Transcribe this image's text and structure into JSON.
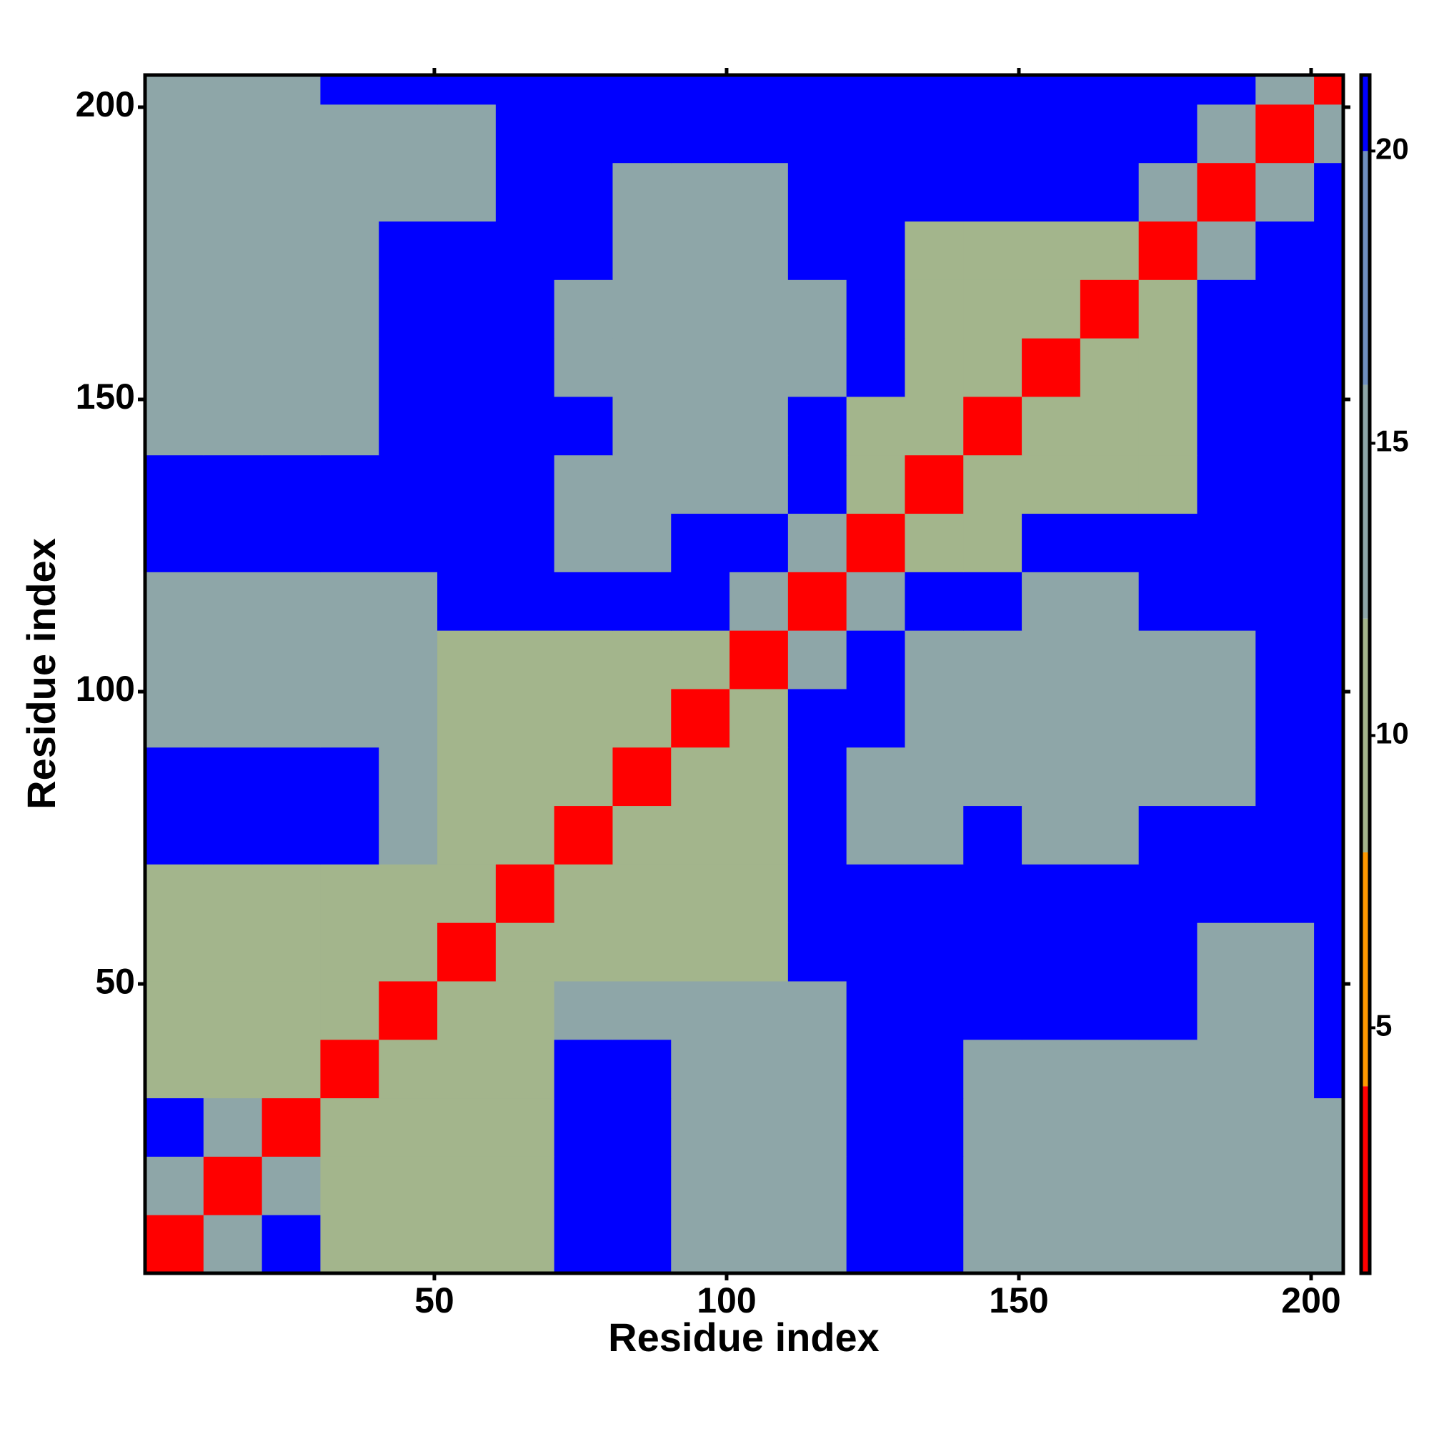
{
  "chart_data": {
    "type": "heatmap",
    "xlabel": "Residue index",
    "ylabel": "Residue index",
    "xlim": [
      0.5,
      205.5
    ],
    "ylim": [
      0.5,
      205.5
    ],
    "xticks": [
      50,
      100,
      150,
      200
    ],
    "yticks": [
      50,
      100,
      150,
      200
    ],
    "bins": [
      0.5,
      10.5,
      20.5,
      30.5,
      40.5,
      50.5,
      60.5,
      70.5,
      80.5,
      90.5,
      100.5,
      110.5,
      120.5,
      130.5,
      140.5,
      150.5,
      160.5,
      170.5,
      180.5,
      190.5,
      200.5,
      205.5
    ],
    "z": [
      [
        4,
        13,
        21,
        12,
        12,
        12,
        12,
        21,
        21,
        13,
        13,
        13,
        21,
        21,
        13,
        13,
        13,
        13,
        13,
        13,
        13
      ],
      [
        13,
        4,
        13,
        12,
        12,
        12,
        12,
        21,
        21,
        13,
        13,
        13,
        21,
        21,
        13,
        13,
        13,
        13,
        13,
        13,
        13
      ],
      [
        21,
        13,
        4,
        12,
        12,
        12,
        12,
        21,
        21,
        13,
        13,
        13,
        21,
        21,
        13,
        13,
        13,
        13,
        13,
        13,
        13
      ],
      [
        12,
        12,
        12,
        4,
        12,
        12,
        12,
        21,
        21,
        13,
        13,
        13,
        21,
        21,
        13,
        13,
        13,
        13,
        13,
        13,
        21
      ],
      [
        12,
        12,
        12,
        12,
        4,
        12,
        12,
        13,
        13,
        13,
        13,
        13,
        21,
        21,
        21,
        21,
        21,
        21,
        15,
        15,
        21
      ],
      [
        12,
        12,
        12,
        12,
        12,
        4,
        12,
        12,
        12,
        12,
        12,
        21,
        21,
        21,
        21,
        21,
        21,
        21,
        15,
        15,
        21
      ],
      [
        12,
        12,
        12,
        12,
        12,
        12,
        4,
        12,
        12,
        12,
        12,
        21,
        21,
        21,
        21,
        21,
        21,
        21,
        21,
        21,
        21
      ],
      [
        21,
        21,
        21,
        21,
        13,
        12,
        12,
        4,
        12,
        12,
        12,
        21,
        13,
        13,
        21,
        14,
        14,
        21,
        21,
        21,
        21
      ],
      [
        21,
        21,
        21,
        21,
        13,
        12,
        12,
        12,
        4,
        12,
        12,
        21,
        13,
        13,
        13,
        13,
        13,
        13,
        13,
        21,
        21
      ],
      [
        13,
        13,
        13,
        13,
        13,
        12,
        12,
        12,
        12,
        4,
        12,
        21,
        21,
        14,
        13,
        13,
        13,
        13,
        13,
        21,
        21
      ],
      [
        13,
        13,
        13,
        13,
        13,
        12,
        12,
        12,
        12,
        12,
        4,
        13,
        21,
        14,
        13,
        13,
        13,
        13,
        13,
        21,
        21
      ],
      [
        13,
        13,
        13,
        13,
        13,
        21,
        21,
        21,
        21,
        21,
        13,
        4,
        13,
        21,
        21,
        14,
        14,
        21,
        21,
        21,
        21
      ],
      [
        21,
        21,
        21,
        21,
        21,
        21,
        21,
        13,
        13,
        21,
        21,
        13,
        4,
        11,
        11,
        21,
        21,
        21,
        21,
        21,
        21
      ],
      [
        21,
        21,
        21,
        21,
        21,
        21,
        21,
        13,
        13,
        14,
        14,
        21,
        11,
        4,
        11,
        12,
        12,
        12,
        21,
        21,
        21
      ],
      [
        13,
        13,
        13,
        13,
        21,
        21,
        21,
        21,
        13,
        13,
        13,
        21,
        11,
        11,
        4,
        12,
        12,
        12,
        21,
        21,
        21
      ],
      [
        13,
        13,
        13,
        13,
        21,
        21,
        21,
        14,
        13,
        13,
        13,
        14,
        21,
        12,
        12,
        4,
        12,
        12,
        21,
        21,
        21
      ],
      [
        13,
        13,
        13,
        13,
        21,
        21,
        21,
        14,
        13,
        13,
        13,
        14,
        21,
        12,
        12,
        12,
        4,
        12,
        21,
        21,
        21
      ],
      [
        13,
        13,
        13,
        13,
        21,
        21,
        21,
        21,
        13,
        13,
        13,
        21,
        21,
        12,
        12,
        12,
        12,
        4,
        13,
        21,
        21
      ],
      [
        13,
        13,
        13,
        13,
        15,
        15,
        21,
        21,
        13,
        13,
        13,
        21,
        21,
        21,
        21,
        21,
        21,
        13,
        4,
        13,
        21
      ],
      [
        13,
        13,
        13,
        13,
        15,
        15,
        21,
        21,
        21,
        21,
        21,
        21,
        21,
        21,
        21,
        21,
        21,
        21,
        13,
        4,
        13
      ],
      [
        13,
        13,
        13,
        21,
        21,
        21,
        21,
        21,
        21,
        21,
        21,
        21,
        21,
        21,
        21,
        21,
        21,
        21,
        21,
        13,
        4
      ]
    ],
    "clim": [
      0.8,
      21.3
    ],
    "cticks": [
      5,
      10,
      15,
      20
    ],
    "colorscale": [
      {
        "value": 4,
        "color": "#ff0000"
      },
      {
        "value": 8,
        "color": "#ff9900"
      },
      {
        "value": 12,
        "color": "#a3b58c"
      },
      {
        "value": 16,
        "color": "#8ea6a8"
      },
      {
        "value": 20,
        "color": "#6f8fbf"
      },
      {
        "value": 21.3,
        "color": "#0000ff"
      }
    ]
  }
}
